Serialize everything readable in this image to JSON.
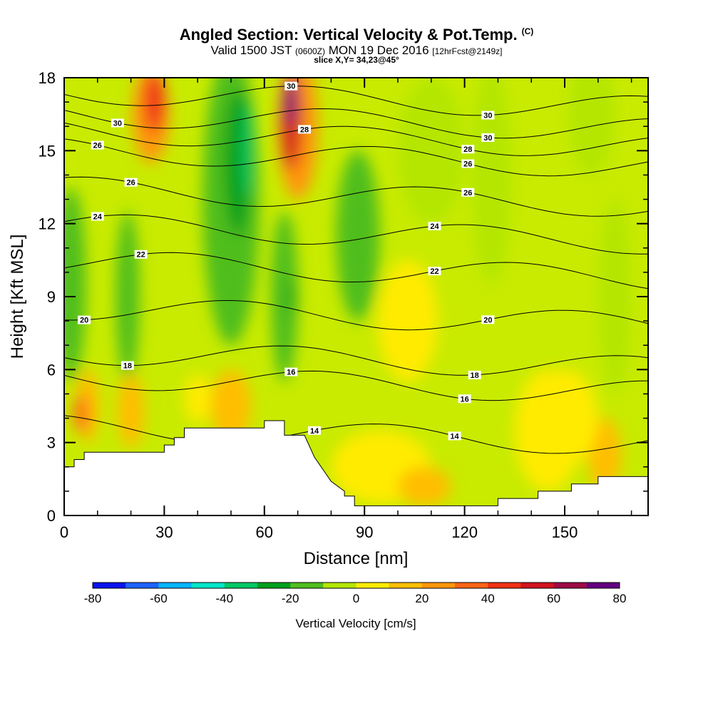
{
  "title": {
    "main": "Angled Section: Vertical Velocity & Pot.Temp.",
    "units_tag": "(C)",
    "valid_prefix": "Valid 1500 JST",
    "valid_utc": "(0600Z)",
    "valid_date": "MON 19 Dec 2016",
    "forecast_tag": "[12hrFcst@2149z]",
    "slice": "slice X,Y= 34,23@45°"
  },
  "chart_data": {
    "type": "heatmap",
    "xlabel": "Distance [nm]",
    "ylabel": "Height [Kft MSL]",
    "xlim": [
      0,
      175
    ],
    "ylim": [
      0,
      18
    ],
    "x_ticks": [
      "0",
      "30",
      "60",
      "90",
      "120",
      "150"
    ],
    "y_ticks": [
      "0",
      "3",
      "6",
      "9",
      "12",
      "15",
      "18"
    ],
    "x_tick_values": [
      0,
      30,
      60,
      90,
      120,
      150
    ],
    "y_tick_values": [
      0,
      3,
      6,
      9,
      12,
      15,
      18
    ],
    "colorbar": {
      "title": "Vertical Velocity [cm/s]",
      "levels": [
        -80,
        -70,
        -60,
        -50,
        -40,
        -30,
        -20,
        -10,
        0,
        10,
        20,
        30,
        40,
        50,
        60,
        70,
        80
      ],
      "tick_labels": [
        "-80",
        "-60",
        "-40",
        "-20",
        "0",
        "20",
        "40",
        "60",
        "80"
      ],
      "colors": [
        "#0a14f0",
        "#1e64ff",
        "#00b4ff",
        "#00e6c8",
        "#00c864",
        "#00a01e",
        "#50be1e",
        "#b4e600",
        "#ffeb00",
        "#ffbe00",
        "#ff960a",
        "#ff6414",
        "#f03214",
        "#d2141e",
        "#a00a46",
        "#640082"
      ]
    },
    "terrain": {
      "x": [
        0,
        3,
        3,
        6,
        6,
        30,
        30,
        33,
        33,
        36,
        36,
        60,
        60,
        66,
        66,
        72,
        75,
        80,
        84,
        84,
        87,
        87,
        130,
        130,
        142,
        142,
        152,
        152,
        160,
        160,
        175
      ],
      "height": [
        2.0,
        2.0,
        2.3,
        2.3,
        2.6,
        2.6,
        2.9,
        2.9,
        3.2,
        3.2,
        3.6,
        3.6,
        3.9,
        3.9,
        3.3,
        3.3,
        2.4,
        1.4,
        1.0,
        0.8,
        0.8,
        0.4,
        0.4,
        0.7,
        0.7,
        1.0,
        1.0,
        1.3,
        1.3,
        1.6,
        1.6
      ]
    },
    "vertical_velocity_cells": [
      {
        "x": 2,
        "y": 9.5,
        "w": 9,
        "h": 8,
        "value": -15
      },
      {
        "x": 19,
        "y": 9,
        "w": 7,
        "h": 7,
        "value": -20
      },
      {
        "x": 7,
        "y": 4.5,
        "w": 7,
        "h": 3,
        "value": 15
      },
      {
        "x": 5,
        "y": 4.2,
        "w": 4,
        "h": 1.6,
        "value": 35
      },
      {
        "x": 20,
        "y": 4.3,
        "w": 8,
        "h": 3,
        "value": 12
      },
      {
        "x": 26,
        "y": 16.5,
        "w": 11,
        "h": 4,
        "value": 25
      },
      {
        "x": 27,
        "y": 17.0,
        "w": 6,
        "h": 2.5,
        "value": 40
      },
      {
        "x": 50,
        "y": 13,
        "w": 17,
        "h": 12,
        "value": -18
      },
      {
        "x": 52,
        "y": 14.5,
        "w": 8,
        "h": 6,
        "value": -28
      },
      {
        "x": 55,
        "y": 15,
        "w": 3,
        "h": 4,
        "value": -38
      },
      {
        "x": 66,
        "y": 9,
        "w": 8,
        "h": 7,
        "value": -15
      },
      {
        "x": 68,
        "y": 9,
        "w": 2,
        "h": 1.5,
        "value": -25
      },
      {
        "x": 70,
        "y": 16,
        "w": 12,
        "h": 6,
        "value": 25
      },
      {
        "x": 68,
        "y": 16.2,
        "w": 6,
        "h": 4,
        "value": 50
      },
      {
        "x": 68,
        "y": 17,
        "w": 3,
        "h": 2,
        "value": 75
      },
      {
        "x": 88,
        "y": 11.5,
        "w": 13,
        "h": 7,
        "value": -15
      },
      {
        "x": 50,
        "y": 4.5,
        "w": 12,
        "h": 3,
        "value": 12
      },
      {
        "x": 40,
        "y": 4.8,
        "w": 8,
        "h": 2,
        "value": 8
      },
      {
        "x": 95,
        "y": 2,
        "w": 30,
        "h": 3,
        "value": 5
      },
      {
        "x": 108,
        "y": 1.2,
        "w": 16,
        "h": 1.6,
        "value": 12
      },
      {
        "x": 145,
        "y": 3.5,
        "w": 20,
        "h": 5,
        "value": 4
      },
      {
        "x": 162,
        "y": 2.5,
        "w": 10,
        "h": 3,
        "value": 12
      },
      {
        "x": 128,
        "y": 14,
        "w": 12,
        "h": 9,
        "value": -5
      },
      {
        "x": 165,
        "y": 9,
        "w": 10,
        "h": 8,
        "value": -5
      },
      {
        "x": 158,
        "y": 16.5,
        "w": 14,
        "h": 5,
        "value": -5
      },
      {
        "x": 103,
        "y": 8,
        "w": 18,
        "h": 5,
        "value": 5
      },
      {
        "x": 150,
        "y": 4,
        "w": 20,
        "h": 4,
        "value": 8
      },
      {
        "x": 110,
        "y": 15,
        "w": 20,
        "h": 6,
        "value": -3
      }
    ],
    "pot_temp_contours": [
      {
        "level": 14,
        "base": 3.4,
        "label": "14",
        "label_x": 75,
        "label_x2": 117
      },
      {
        "level": 16,
        "base": 5.5,
        "label": "16",
        "label_x": 68,
        "label_x2": 120
      },
      {
        "level": 18,
        "base": 6.5,
        "label": "18",
        "label_x": 19,
        "label_x2": 123
      },
      {
        "level": 20,
        "base": 8.3,
        "label": "20",
        "label_x": 6,
        "label_x2": 127
      },
      {
        "level": 22,
        "base": 10.2,
        "label": "22",
        "label_x": 23,
        "label_x2": 111
      },
      {
        "level": 24,
        "base": 11.7,
        "label": "24",
        "label_x": 10,
        "label_x2": 111
      },
      {
        "level": 26,
        "base": 13.2,
        "label": "26",
        "label_x": 20,
        "label_x2": 121
      },
      {
        "level": 26,
        "base": 14.8,
        "label": "26",
        "label_x": 10,
        "label_x2": 121
      },
      {
        "level": 28,
        "base": 15.6,
        "label": "28",
        "label_x": 72,
        "label_x2": 121
      },
      {
        "level": 30,
        "base": 16.3,
        "label": "30",
        "label_x": 16,
        "label_x2": 127
      },
      {
        "level": 30,
        "base": 17.2,
        "label": "30",
        "label_x": 68,
        "label_x2": 127
      }
    ]
  }
}
